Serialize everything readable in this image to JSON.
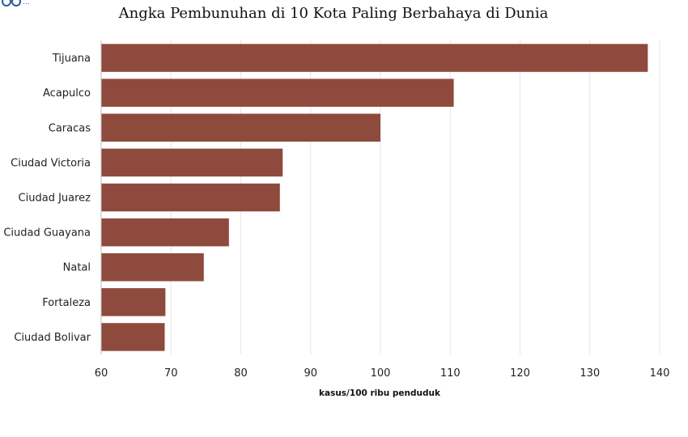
{
  "chart_data": {
    "type": "bar",
    "orientation": "horizontal",
    "title": "Angka Pembunuhan di 10 Kota Paling Berbahaya di Dunia",
    "xlabel": "kasus/100 ribu penduduk",
    "ylabel": "",
    "categories": [
      "Tijuana",
      "Acapulco",
      "Caracas",
      "Ciudad Victoria",
      "Ciudad Juarez",
      "Ciudad Guayana",
      "Natal",
      "Fortaleza",
      "Ciudad Bolivar"
    ],
    "values": [
      138.3,
      110.5,
      100.0,
      86.0,
      85.6,
      78.3,
      74.7,
      69.2,
      69.1
    ],
    "xlim": [
      60,
      140
    ],
    "xticks": [
      "60",
      "70",
      "80",
      "90",
      "100",
      "110",
      "120",
      "130",
      "140"
    ],
    "bar_color": "#8e4a3c",
    "grid": true
  }
}
